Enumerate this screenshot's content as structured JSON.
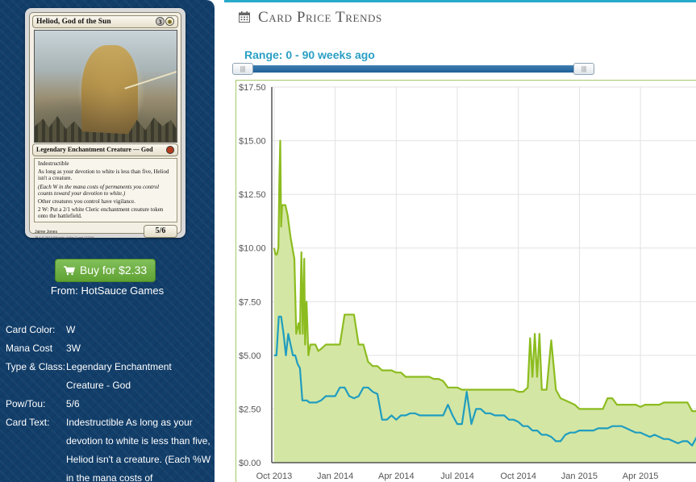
{
  "card": {
    "name": "Heliod, God of the Sun",
    "mana_cost_generic": "3",
    "mana_cost_symbol": "W",
    "type_line": "Legendary Enchantment Creature — God",
    "rules_text": [
      "Indestructible",
      "As long as your devotion to white is less than five, Heliod isn't a creature.",
      "(Each W in the mana costs of permanents you control counts toward your devotion to white.)",
      "Other creatures you control have vigilance.",
      "2 W: Put a 2/1 white Cleric enchantment creature token onto the battlefield."
    ],
    "power_toughness": "5/6",
    "artist": "Jaime Jones",
    "copyright": "™ & © 2013 Wizards of the Coast 17/249"
  },
  "buy": {
    "label": "Buy for $2.33",
    "from_label": "From:",
    "seller": "HotSauce Games"
  },
  "details": [
    {
      "label": "Card Color:",
      "value": "W"
    },
    {
      "label": "Mana Cost",
      "value": "3W"
    },
    {
      "label": "Type & Class:",
      "value": "Legendary Enchantment Creature - God"
    },
    {
      "label": "Pow/Tou:",
      "value": "5/6"
    },
    {
      "label": "Card Text:",
      "value": "Indestructible As long as your devotion to white is less than five, Heliod isn't a creature. (Each %W in the mana costs of"
    }
  ],
  "main": {
    "section_title": "Card Price Trends",
    "range_label": "Range: 0 - 90 weeks ago",
    "slider": {
      "min_weeks_ago": 0,
      "max_weeks_ago": 90
    }
  },
  "colors": {
    "sidebar_bg": "#123e6a",
    "accent": "#27a9c9",
    "buy_green": "#6aac3e",
    "line_green": "#8cbc1f",
    "line_blue": "#1f9dc0",
    "area_fill": "#d4e6a4"
  },
  "icons": {
    "cart": "shopping-cart-icon",
    "calendar": "calendar-icon",
    "slider_grip": "grip-icon"
  },
  "chart_data": {
    "type": "line",
    "title": "",
    "xlabel": "",
    "ylabel": "",
    "ylim": [
      0,
      17.5
    ],
    "yticks": [
      "$0.00",
      "$2.50",
      "$5.00",
      "$7.50",
      "$10.00",
      "$12.50",
      "$15.00",
      "$17.50"
    ],
    "ytick_values": [
      0,
      2.5,
      5,
      7.5,
      10,
      12.5,
      15,
      17.5
    ],
    "xticks": [
      "Oct 2013",
      "Jan 2014",
      "Apr 2014",
      "Jul 2014",
      "Oct 2014",
      "Jan 2015",
      "Apr 2015"
    ],
    "xtick_positions_weeks": [
      0,
      13,
      26,
      39,
      52,
      65,
      78
    ],
    "xlim_weeks": [
      -0.5,
      90
    ],
    "grid": true,
    "series": [
      {
        "color": "#8cbc1f",
        "filled": true,
        "x": [
          0,
          0.3,
          0.6,
          0.9,
          1.1,
          1.3,
          1.5,
          1.7,
          1.9,
          2.1,
          2.4,
          2.9,
          3.2,
          3.5,
          3.9,
          4.3,
          4.7,
          5.2,
          5.5,
          5.8,
          6.1,
          6.4,
          6.6,
          6.9,
          7.3,
          7.7,
          8.2,
          8.8,
          9.4,
          10,
          11,
          12,
          13,
          14,
          15,
          16,
          17,
          18,
          19,
          20,
          21,
          22,
          23,
          24,
          25,
          26,
          27,
          28,
          29,
          30,
          31,
          32,
          33,
          34,
          35,
          36,
          37,
          38,
          39,
          40,
          41,
          42,
          43,
          44,
          45,
          46,
          47,
          48,
          49,
          50,
          51,
          52,
          53,
          54,
          54.5,
          55,
          55.5,
          56,
          56.5,
          57,
          58,
          59,
          60,
          61,
          62,
          63,
          64,
          65,
          66,
          67,
          68,
          69,
          70,
          71,
          72,
          73,
          74,
          75,
          76,
          77,
          78,
          79,
          80,
          81,
          82,
          83,
          84,
          85,
          86,
          87,
          88,
          89,
          90
        ],
        "y": [
          10,
          9.7,
          9.7,
          10,
          13,
          15,
          11,
          12,
          12,
          12,
          12,
          11.5,
          11,
          10.5,
          10,
          9.5,
          6,
          6.5,
          6,
          9.8,
          6,
          9.5,
          5.5,
          7.5,
          5,
          5.5,
          5.5,
          5.5,
          5.2,
          5.3,
          5.5,
          5.5,
          5.5,
          5.5,
          6.9,
          6.9,
          6.9,
          5.5,
          5.5,
          4.7,
          4.5,
          4.5,
          4.3,
          4.3,
          4.3,
          4.2,
          4.2,
          4,
          4,
          4,
          4,
          4,
          4,
          3.9,
          3.9,
          3.8,
          3.5,
          3.5,
          3.5,
          3.4,
          3.4,
          3.4,
          3.4,
          3.4,
          3.4,
          3.4,
          3.4,
          3.4,
          3.4,
          3.4,
          3.4,
          3.3,
          3.3,
          3.5,
          5.8,
          4,
          6,
          4,
          6,
          3.4,
          3.4,
          5.7,
          3.4,
          3,
          2.9,
          2.8,
          2.7,
          2.5,
          2.5,
          2.5,
          2.5,
          2.5,
          2.5,
          3,
          3,
          2.7,
          2.7,
          2.7,
          2.7,
          2.7,
          2.6,
          2.7,
          2.7,
          2.7,
          2.7,
          2.8,
          2.8,
          2.8,
          2.8,
          2.8,
          2.8,
          2.4,
          2.4
        ]
      },
      {
        "color": "#1f9dc0",
        "filled": false,
        "x": [
          0,
          0.5,
          1,
          1.5,
          2,
          2.5,
          3,
          3.5,
          4,
          4.5,
          5,
          5.5,
          6,
          6.5,
          7,
          7.5,
          8,
          9,
          10,
          11,
          12,
          13,
          14,
          15,
          16,
          17,
          18,
          19,
          20,
          21,
          22,
          23,
          24,
          25,
          26,
          27,
          28,
          29,
          30,
          31,
          32,
          33,
          34,
          35,
          36,
          37,
          38,
          39,
          40,
          41,
          42,
          43,
          44,
          45,
          46,
          47,
          48,
          49,
          50,
          51,
          52,
          53,
          54,
          55,
          56,
          57,
          58,
          59,
          60,
          61,
          62,
          63,
          64,
          65,
          66,
          67,
          68,
          69,
          70,
          71,
          72,
          73,
          74,
          75,
          76,
          77,
          78,
          79,
          80,
          81,
          82,
          83,
          84,
          85,
          86,
          87,
          88,
          89,
          90
        ],
        "y": [
          5,
          5,
          6.8,
          6.8,
          6,
          5,
          6,
          5.5,
          5,
          5,
          4.6,
          4.4,
          2.9,
          2.9,
          2.9,
          2.8,
          2.8,
          2.8,
          2.9,
          3.1,
          3.1,
          3.1,
          3.5,
          3.5,
          3.1,
          3,
          3.1,
          3.5,
          3.5,
          3.3,
          3.2,
          2,
          2,
          2.2,
          2,
          2.2,
          2.2,
          2.3,
          2.3,
          2.2,
          2.2,
          2.2,
          2.2,
          2.2,
          2.2,
          2.7,
          2.2,
          1.8,
          1.8,
          3.3,
          1.8,
          2.5,
          2.5,
          2.3,
          2.3,
          2.2,
          2.2,
          2.2,
          2,
          2,
          1.9,
          1.7,
          1.7,
          1.5,
          1.5,
          1.3,
          1.3,
          1.2,
          1,
          1,
          1.3,
          1.4,
          1.4,
          1.5,
          1.5,
          1.5,
          1.5,
          1.6,
          1.6,
          1.6,
          1.7,
          1.7,
          1.7,
          1.6,
          1.5,
          1.4,
          1.4,
          1.3,
          1.2,
          1.3,
          1.2,
          1.1,
          1.1,
          1,
          0.9,
          1,
          1,
          0.8,
          1.2
        ]
      }
    ]
  }
}
